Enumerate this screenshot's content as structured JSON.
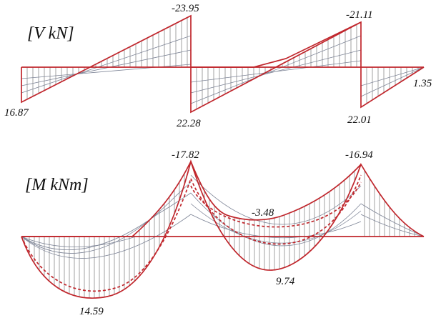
{
  "shear": {
    "title": "[V  kN]",
    "labels": {
      "span1_end": "-23.95",
      "span2_end": "-21.11",
      "span1_start": "16.87",
      "span2_start": "22.28",
      "span3_start": "22.01",
      "span3_end": "1.35"
    }
  },
  "moment": {
    "title": "[M  kNm]",
    "labels": {
      "support1": "-17.82",
      "support2": "-16.94",
      "span2_min": "-3.48",
      "span2_max": "9.74",
      "span1_max": "14.59"
    }
  },
  "colors": {
    "envelope": "#c0262c",
    "hatch": "#555555",
    "inner_lines": "#7d8496"
  }
}
